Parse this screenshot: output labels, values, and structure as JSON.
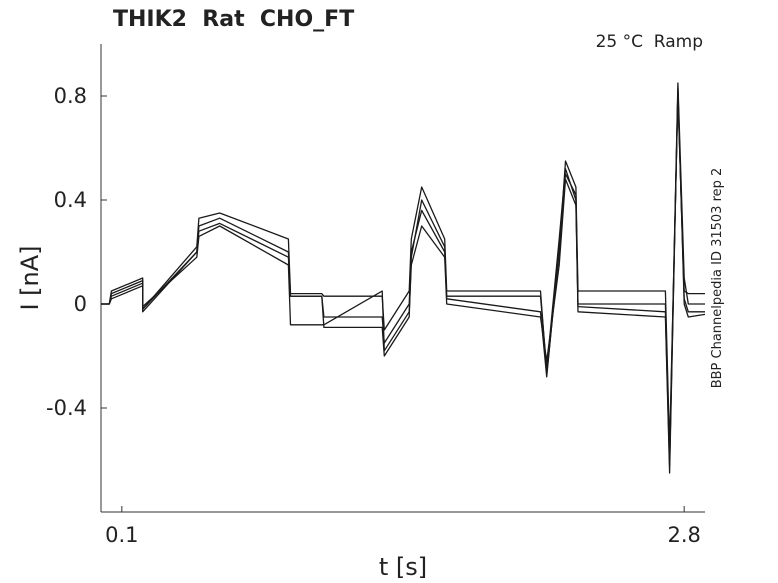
{
  "chart_data": {
    "type": "line",
    "title": "THIK2  Rat  CHO_FT",
    "annotation": "25 °C  Ramp",
    "side_note": "BBP Channelpedia ID 31503 rep 2",
    "x_label": "t [s]",
    "y_label": "I [nA]",
    "x": [
      0.0,
      0.04,
      0.05,
      0.2,
      0.2,
      0.46,
      0.47,
      0.57,
      0.9,
      0.91,
      1.06,
      1.07,
      1.35,
      1.36,
      1.48,
      1.49,
      1.54,
      1.65,
      1.66,
      2.11,
      2.14,
      2.2,
      2.23,
      2.28,
      2.29,
      2.71,
      2.73,
      2.77,
      2.8,
      2.82,
      2.9
    ],
    "series": [
      {
        "color": "#1a1a1a",
        "values": [
          0,
          0,
          0.04,
          0.09,
          -0.03,
          0.2,
          0.3,
          0.33,
          0.2,
          0.03,
          0.03,
          -0.05,
          -0.05,
          -0.15,
          0,
          0.2,
          0.36,
          0.2,
          0.03,
          0.03,
          -0.25,
          0.25,
          0.52,
          0.4,
          0,
          0,
          -0.6,
          0.85,
          0.1,
          0,
          0
        ]
      },
      {
        "color": "#1a1a1a",
        "values": [
          0,
          0,
          0.05,
          0.1,
          -0.02,
          0.22,
          0.33,
          0.35,
          0.25,
          0.04,
          0.04,
          0.03,
          0.03,
          -0.1,
          0.05,
          0.25,
          0.45,
          0.25,
          0.05,
          0.05,
          -0.27,
          0.2,
          0.55,
          0.45,
          0.05,
          0.05,
          -0.55,
          0.8,
          0.05,
          0.04,
          0.04
        ]
      },
      {
        "color": "#1a1a1a",
        "values": [
          0,
          0,
          0.02,
          0.07,
          -0.01,
          0.18,
          0.26,
          0.3,
          0.15,
          -0.08,
          -0.08,
          -0.08,
          0.05,
          -0.18,
          -0.03,
          0.15,
          0.3,
          0.18,
          0,
          -0.05,
          -0.22,
          0.15,
          0.48,
          0.38,
          -0.03,
          -0.05,
          -0.65,
          0.83,
          0,
          -0.05,
          -0.04
        ]
      },
      {
        "color": "#1a1a1a",
        "values": [
          0,
          0,
          0.03,
          0.08,
          -0.02,
          0.2,
          0.28,
          0.31,
          0.18,
          0.03,
          0.03,
          -0.09,
          -0.09,
          -0.2,
          -0.05,
          0.18,
          0.4,
          0.22,
          0.02,
          -0.03,
          -0.28,
          0.22,
          0.5,
          0.42,
          -0.01,
          -0.03,
          -0.62,
          0.82,
          0.02,
          -0.03,
          -0.03
        ]
      }
    ],
    "xlim": [
      0,
      2.9
    ],
    "xticks": [
      0.1,
      2.8
    ],
    "ylim": [
      -0.8,
      1.0
    ],
    "yticks": [
      -0.4,
      0,
      0.4,
      0.8
    ],
    "grid": false
  }
}
